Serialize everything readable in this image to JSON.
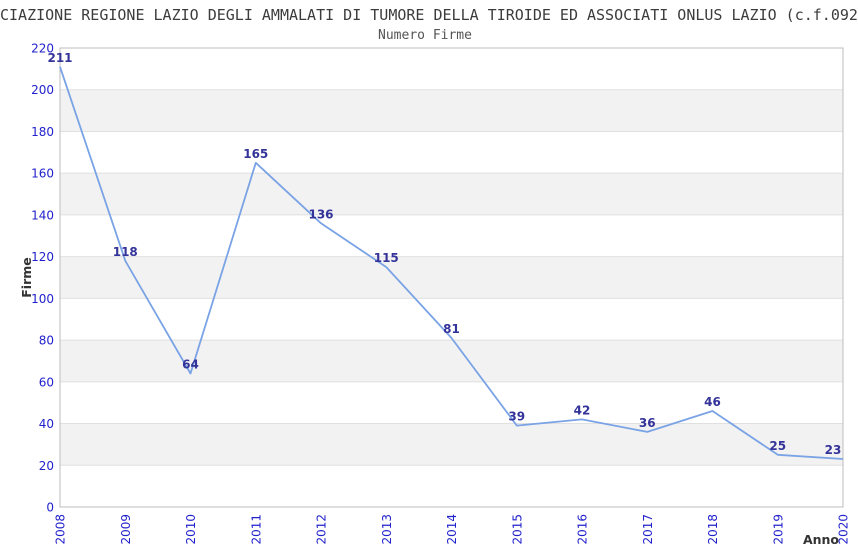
{
  "chart_data": {
    "type": "line",
    "title": "CIAZIONE REGIONE LAZIO DEGLI AMMALATI DI TUMORE DELLA TIROIDE ED ASSOCIATI ONLUS LAZIO (c.f.092",
    "subtitle": "Numero Firme",
    "xlabel": "Anno",
    "ylabel": "Firme",
    "categories": [
      "2008",
      "2009",
      "2010",
      "2011",
      "2012",
      "2013",
      "2014",
      "2015",
      "2016",
      "2017",
      "2018",
      "2019",
      "2020"
    ],
    "values": [
      211,
      118,
      64,
      165,
      136,
      115,
      81,
      39,
      42,
      36,
      46,
      25,
      23
    ],
    "ylim": [
      0,
      220
    ],
    "y_tick_step": 20,
    "y_ticks": [
      0,
      20,
      40,
      60,
      80,
      100,
      120,
      140,
      160,
      180,
      200,
      220
    ],
    "grid": "horizontal-only",
    "banded_background": true,
    "legend": "none"
  },
  "colors": {
    "line": "#7AA3E5",
    "tick_label": "#2222CC",
    "data_label": "#333399",
    "axis_title": "#333333",
    "title_text": "#3C3C3C",
    "subtitle_text": "#555555",
    "band": "#F2F2F2",
    "gridline": "#E0E0E0",
    "plot_border": "#BDBDBD",
    "background": "#FFFFFF"
  }
}
